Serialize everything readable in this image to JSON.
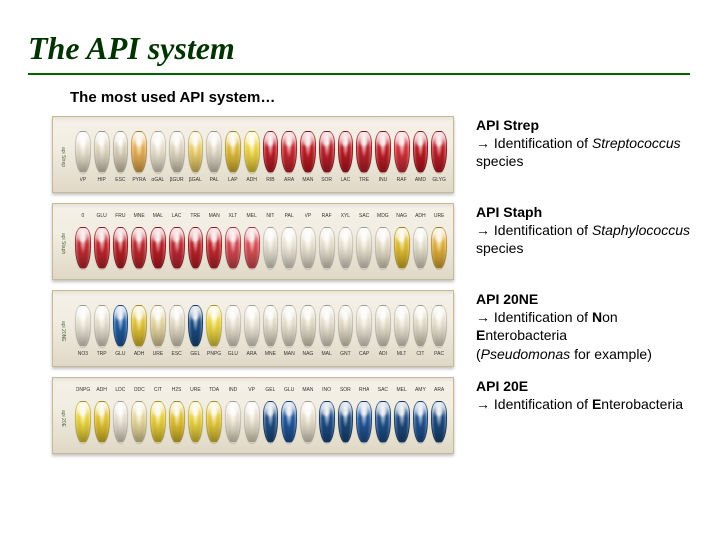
{
  "title": "The API system",
  "subtitle": "The most used API system…",
  "colors": {
    "title": "#003300",
    "underline": "#006600",
    "strip_bg_top": "#f4f0e7",
    "strip_bg_bot": "#e0d8c6",
    "strip_border": "#c7b998"
  },
  "strips": [
    {
      "id": "api-strep",
      "side_label": "api Strep",
      "desc_title": "API Strep",
      "desc_lines": [
        "→ Identification of <i>Streptococcus</i> species"
      ],
      "wells": [
        {
          "lbl": "VP",
          "color": "#f0e8d4"
        },
        {
          "lbl": "HIP",
          "color": "#e9dfc8"
        },
        {
          "lbl": "ESC",
          "color": "#e3d9c0"
        },
        {
          "lbl": "PYRA",
          "color": "#efb556"
        },
        {
          "lbl": "αGAL",
          "color": "#f2ead6"
        },
        {
          "lbl": "βGUR",
          "color": "#e8dec6"
        },
        {
          "lbl": "βGAL",
          "color": "#f5d870"
        },
        {
          "lbl": "PAL",
          "color": "#e9dfca"
        },
        {
          "lbl": "LAP",
          "color": "#e6c23a"
        },
        {
          "lbl": "ADH",
          "color": "#f8dc44"
        },
        {
          "lbl": "RIB",
          "color": "#c51e28"
        },
        {
          "lbl": "ARA",
          "color": "#cf2830"
        },
        {
          "lbl": "MAN",
          "color": "#c41c24"
        },
        {
          "lbl": "SOR",
          "color": "#c2202a"
        },
        {
          "lbl": "LAC",
          "color": "#c01a22"
        },
        {
          "lbl": "TRE",
          "color": "#c2222c"
        },
        {
          "lbl": "INU",
          "color": "#c61e26"
        },
        {
          "lbl": "RAF",
          "color": "#d9323a"
        },
        {
          "lbl": "AMD",
          "color": "#c01820"
        },
        {
          "lbl": "GLYG",
          "color": "#c41e26"
        }
      ]
    },
    {
      "id": "api-staph",
      "side_label": "api Staph",
      "desc_title": "API Staph",
      "desc_lines": [
        "→ Identification of <i>Staphylococcus</i> species"
      ],
      "wells": [
        {
          "lbl": "0",
          "color": "#c92d34"
        },
        {
          "lbl": "GLU",
          "color": "#c9262e"
        },
        {
          "lbl": "FRU",
          "color": "#c22028"
        },
        {
          "lbl": "MNE",
          "color": "#c62830"
        },
        {
          "lbl": "MAL",
          "color": "#c01e26"
        },
        {
          "lbl": "LAC",
          "color": "#c62a32"
        },
        {
          "lbl": "TRE",
          "color": "#c2222a"
        },
        {
          "lbl": "MAN",
          "color": "#c9282e"
        },
        {
          "lbl": "XLT",
          "color": "#dc4a52"
        },
        {
          "lbl": "MEL",
          "color": "#e25258"
        },
        {
          "lbl": "NIT",
          "color": "#f0eadb"
        },
        {
          "lbl": "PAL",
          "color": "#f6efdf"
        },
        {
          "lbl": "VP",
          "color": "#f2ebd9"
        },
        {
          "lbl": "RAF",
          "color": "#efe7d3"
        },
        {
          "lbl": "XYL",
          "color": "#f4ecdb"
        },
        {
          "lbl": "SAC",
          "color": "#f1e9d6"
        },
        {
          "lbl": "MDG",
          "color": "#eee5cf"
        },
        {
          "lbl": "NAG",
          "color": "#e8c22e"
        },
        {
          "lbl": "ADH",
          "color": "#efe7d3"
        },
        {
          "lbl": "URE",
          "color": "#e9b53a"
        }
      ]
    },
    {
      "id": "api-20ne",
      "side_label": "api 20NE",
      "desc_title": "API 20NE",
      "desc_lines": [
        "→ Identification of <b>N</b>on <b>E</b>nterobacteria",
        "(<i>Pseudomonas</i> for example)"
      ],
      "wells": [
        {
          "lbl": "NO3",
          "color": "#f3edde"
        },
        {
          "lbl": "TRP",
          "color": "#f0e9d7"
        },
        {
          "lbl": "GLU",
          "color": "#1f5fa6"
        },
        {
          "lbl": "ADH",
          "color": "#eaca36"
        },
        {
          "lbl": "URE",
          "color": "#eddda6"
        },
        {
          "lbl": "ESC",
          "color": "#ece3cd"
        },
        {
          "lbl": "GEL",
          "color": "#1b4e86"
        },
        {
          "lbl": "PNPG",
          "color": "#f4de45"
        },
        {
          "lbl": "GLU",
          "color": "#f0e9d8"
        },
        {
          "lbl": "ARA",
          "color": "#f4eede"
        },
        {
          "lbl": "MNE",
          "color": "#eee6d2"
        },
        {
          "lbl": "MAN",
          "color": "#f1ead8"
        },
        {
          "lbl": "NAG",
          "color": "#ece3cc"
        },
        {
          "lbl": "MAL",
          "color": "#f0e9d7"
        },
        {
          "lbl": "GNT",
          "color": "#ece4ce"
        },
        {
          "lbl": "CAP",
          "color": "#f4eddd"
        },
        {
          "lbl": "ADI",
          "color": "#efe7d3"
        },
        {
          "lbl": "MLT",
          "color": "#f2ebd9"
        },
        {
          "lbl": "CIT",
          "color": "#eee5cf"
        },
        {
          "lbl": "PAC",
          "color": "#f1ead7"
        }
      ]
    },
    {
      "id": "api-20e",
      "side_label": "api 20E",
      "desc_title": "API 20E",
      "desc_lines": [
        "→ Identification of <b>E</b>nterobacteria"
      ],
      "wells": [
        {
          "lbl": "ONPG",
          "color": "#f3dc3e"
        },
        {
          "lbl": "ADH",
          "color": "#eac930"
        },
        {
          "lbl": "LDC",
          "color": "#f0e9d8"
        },
        {
          "lbl": "ODC",
          "color": "#eedfa0"
        },
        {
          "lbl": "CIT",
          "color": "#f1d63a"
        },
        {
          "lbl": "H2S",
          "color": "#e8c730"
        },
        {
          "lbl": "URE",
          "color": "#f3da40"
        },
        {
          "lbl": "TDA",
          "color": "#edd13c"
        },
        {
          "lbl": "IND",
          "color": "#f2ead6"
        },
        {
          "lbl": "VP",
          "color": "#f0e8d4"
        },
        {
          "lbl": "GEL",
          "color": "#1f4f86"
        },
        {
          "lbl": "GLU",
          "color": "#2158a0"
        },
        {
          "lbl": "MAN",
          "color": "#efe7d3"
        },
        {
          "lbl": "INO",
          "color": "#1c4e8a"
        },
        {
          "lbl": "SOR",
          "color": "#1b4b80"
        },
        {
          "lbl": "RHA",
          "color": "#22589c"
        },
        {
          "lbl": "SAC",
          "color": "#1f5290"
        },
        {
          "lbl": "MEL",
          "color": "#1d4c82"
        },
        {
          "lbl": "AMY",
          "color": "#205494"
        },
        {
          "lbl": "ARA",
          "color": "#1b4a80"
        }
      ]
    }
  ]
}
